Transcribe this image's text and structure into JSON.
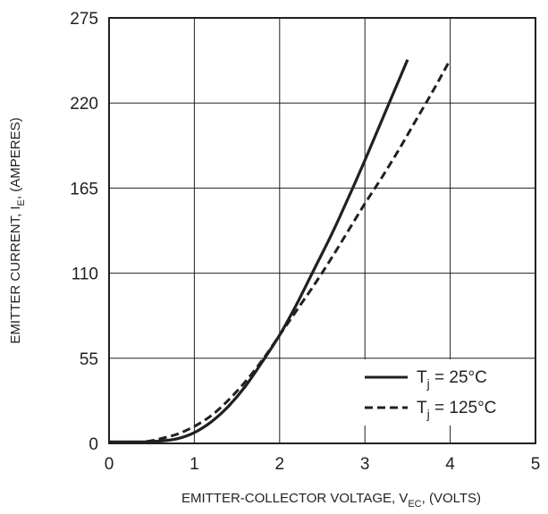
{
  "chart_data": {
    "type": "line",
    "xlabel": {
      "prefix": "EMITTER-COLLECTOR VOLTAGE, V",
      "subscript": "EC",
      "suffix": ", (VOLTS)"
    },
    "ylabel": {
      "prefix": "EMITTER CURRENT, I",
      "subscript": "E",
      "suffix": ", (AMPERES)"
    },
    "xlim": [
      0,
      5
    ],
    "ylim": [
      0,
      275
    ],
    "x_ticks": [
      0,
      1,
      2,
      3,
      4,
      5
    ],
    "y_ticks": [
      0,
      55,
      110,
      165,
      220,
      275
    ],
    "x_tick_labels": [
      "0",
      "1",
      "2",
      "3",
      "4",
      "5"
    ],
    "y_tick_labels": [
      "0",
      "55",
      "110",
      "165",
      "220",
      "275"
    ],
    "grid": true,
    "legend_position": "bottom-right",
    "series": [
      {
        "name": {
          "prefix": "T",
          "subscript": "j",
          "suffix": " = 25°C"
        },
        "style": "solid",
        "x": [
          0,
          0.4,
          0.6,
          0.8,
          1.0,
          1.2,
          1.4,
          1.6,
          1.8,
          2.0,
          2.2,
          2.4,
          2.6,
          2.8,
          3.0,
          3.2,
          3.4,
          3.5
        ],
        "y": [
          1,
          1,
          1.5,
          3,
          7,
          14,
          24,
          37,
          53,
          70,
          90,
          112,
          134,
          158,
          183,
          209,
          235,
          248
        ]
      },
      {
        "name": {
          "prefix": "T",
          "subscript": "j",
          "suffix": " = 125°C"
        },
        "style": "dashed",
        "x": [
          0,
          0.4,
          0.6,
          0.8,
          1.0,
          1.2,
          1.4,
          1.6,
          1.8,
          2.0,
          2.2,
          2.4,
          2.6,
          2.8,
          3.0,
          3.2,
          3.4,
          3.6,
          3.8,
          4.0
        ],
        "y": [
          0.5,
          1,
          3,
          6,
          11,
          18,
          28,
          40,
          54,
          70,
          86,
          102,
          119,
          137,
          155,
          172,
          190,
          209,
          228,
          248
        ]
      }
    ]
  },
  "colors": {
    "line": "#231f20",
    "grid": "#231f20",
    "background": "#ffffff"
  }
}
